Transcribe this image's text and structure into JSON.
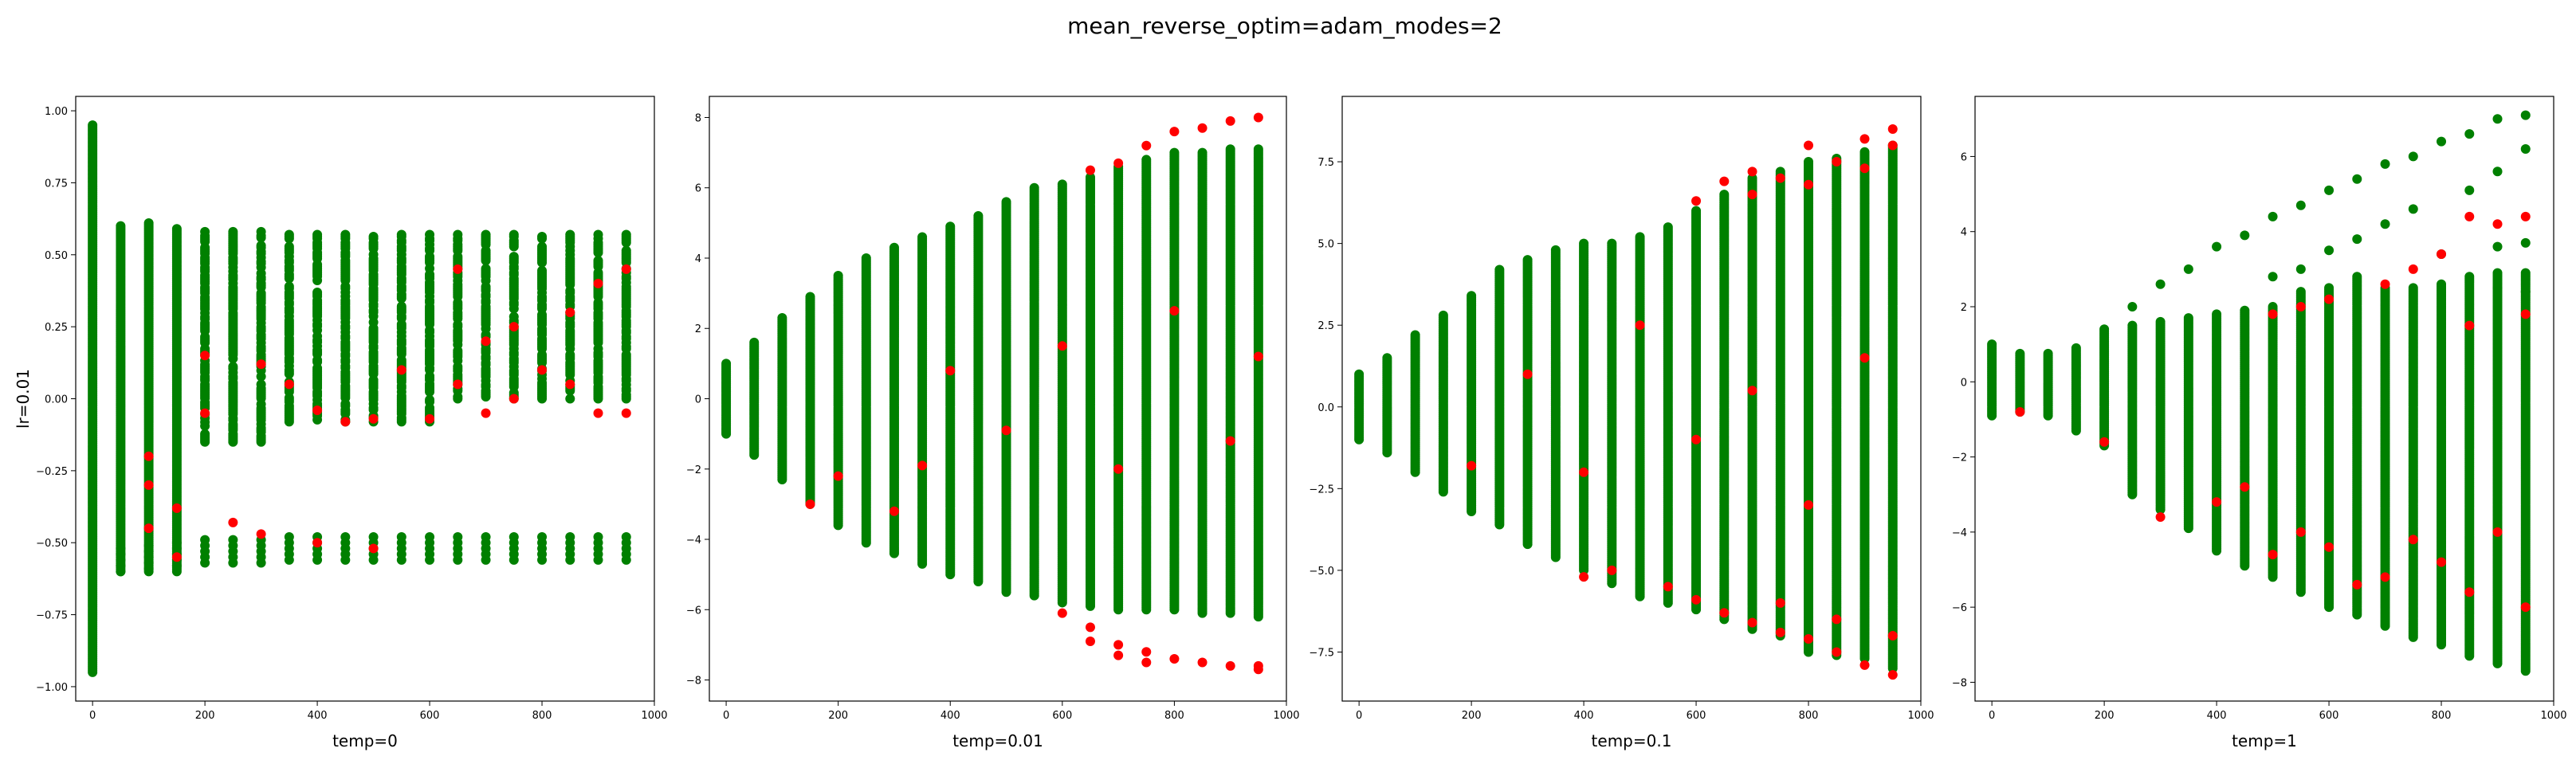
{
  "figure": {
    "title": "mean_reverse_optim=adam_modes=2",
    "colors": {
      "green": "#008000",
      "red": "#ff0000"
    }
  },
  "chart_data": [
    {
      "type": "scatter",
      "xlabel": "temp=0",
      "ylabel": "lr=0.01",
      "xlim": [
        -30,
        1000
      ],
      "ylim": [
        -1.05,
        1.05
      ],
      "xticks": [
        0,
        200,
        400,
        600,
        800,
        1000
      ],
      "yticks": [
        -1.0,
        -0.75,
        -0.5,
        -0.25,
        0.0,
        0.25,
        0.5,
        0.75,
        1.0
      ],
      "ytick_labels": [
        "−1.00",
        "−0.75",
        "−0.50",
        "−0.25",
        "0.00",
        "0.25",
        "0.50",
        "0.75",
        "1.00"
      ],
      "x_steps": [
        0,
        50,
        100,
        150,
        200,
        250,
        300,
        350,
        400,
        450,
        500,
        550,
        600,
        650,
        700,
        750,
        800,
        850,
        900,
        950
      ],
      "upper_max": [
        0.95,
        0.6,
        0.61,
        0.59,
        0.58,
        0.58,
        0.58,
        0.57,
        0.57,
        0.57,
        0.57,
        0.57,
        0.57,
        0.57,
        0.57,
        0.57,
        0.57,
        0.57,
        0.57,
        0.57
      ],
      "lower_min": [
        -0.95,
        -0.6,
        -0.59,
        -0.58,
        -0.57,
        -0.57,
        -0.57,
        -0.56,
        -0.56,
        -0.56,
        -0.56,
        -0.56,
        -0.56,
        -0.56,
        -0.56,
        -0.56,
        -0.56,
        -0.56,
        -0.56,
        -0.56
      ],
      "red_points": [
        [
          100,
          -0.2
        ],
        [
          100,
          -0.3
        ],
        [
          100,
          -0.45
        ],
        [
          150,
          -0.38
        ],
        [
          150,
          -0.55
        ],
        [
          200,
          0.15
        ],
        [
          200,
          -0.05
        ],
        [
          250,
          -0.43
        ],
        [
          300,
          -0.47
        ],
        [
          300,
          0.12
        ],
        [
          350,
          0.05
        ],
        [
          400,
          -0.5
        ],
        [
          400,
          -0.04
        ],
        [
          450,
          -0.08
        ],
        [
          500,
          -0.07
        ],
        [
          500,
          -0.52
        ],
        [
          550,
          0.1
        ],
        [
          600,
          -0.07
        ],
        [
          650,
          0.05
        ],
        [
          700,
          -0.05
        ],
        [
          750,
          0.0
        ],
        [
          800,
          0.1
        ],
        [
          850,
          0.05
        ],
        [
          900,
          -0.05
        ],
        [
          950,
          -0.05
        ],
        [
          950,
          0.45
        ],
        [
          900,
          0.4
        ],
        [
          850,
          0.3
        ],
        [
          750,
          0.25
        ],
        [
          700,
          0.2
        ],
        [
          650,
          0.45
        ]
      ]
    },
    {
      "type": "scatter",
      "xlabel": "temp=0.01",
      "ylabel": "",
      "xlim": [
        -30,
        1000
      ],
      "ylim": [
        -8.6,
        8.6
      ],
      "xticks": [
        0,
        200,
        400,
        600,
        800,
        1000
      ],
      "yticks": [
        -8,
        -6,
        -4,
        -2,
        0,
        2,
        4,
        6,
        8
      ],
      "ytick_labels": [
        "−8",
        "−6",
        "−4",
        "−2",
        "0",
        "2",
        "4",
        "6",
        "8"
      ],
      "x_steps": [
        0,
        50,
        100,
        150,
        200,
        250,
        300,
        350,
        400,
        450,
        500,
        550,
        600,
        650,
        700,
        750,
        800,
        850,
        900,
        950
      ],
      "upper_max": [
        1.0,
        1.6,
        2.3,
        2.9,
        3.5,
        4.0,
        4.3,
        4.6,
        4.9,
        5.2,
        5.6,
        6.0,
        6.1,
        6.3,
        6.6,
        6.8,
        7.0,
        7.0,
        7.1,
        7.1
      ],
      "lower_min": [
        -1.0,
        -1.6,
        -2.3,
        -3.0,
        -3.6,
        -4.1,
        -4.4,
        -4.7,
        -5.0,
        -5.2,
        -5.5,
        -5.6,
        -5.8,
        -5.9,
        -6.0,
        -6.0,
        -6.0,
        -6.1,
        -6.1,
        -6.2
      ],
      "red_points": [
        [
          650,
          6.5
        ],
        [
          700,
          6.7
        ],
        [
          750,
          7.2
        ],
        [
          800,
          7.6
        ],
        [
          850,
          7.7
        ],
        [
          900,
          7.9
        ],
        [
          950,
          8.0
        ],
        [
          600,
          -6.1
        ],
        [
          650,
          -6.5
        ],
        [
          650,
          -6.9
        ],
        [
          700,
          -7.0
        ],
        [
          700,
          -7.3
        ],
        [
          750,
          -7.2
        ],
        [
          750,
          -7.5
        ],
        [
          800,
          -7.4
        ],
        [
          850,
          -7.5
        ],
        [
          900,
          -7.6
        ],
        [
          950,
          -7.6
        ],
        [
          950,
          -7.7
        ],
        [
          150,
          -3.0
        ],
        [
          200,
          -2.2
        ],
        [
          300,
          -3.2
        ],
        [
          350,
          -1.9
        ],
        [
          400,
          0.8
        ],
        [
          500,
          -0.9
        ],
        [
          600,
          1.5
        ],
        [
          700,
          -2.0
        ],
        [
          800,
          2.5
        ],
        [
          900,
          -1.2
        ],
        [
          950,
          1.2
        ]
      ]
    },
    {
      "type": "scatter",
      "xlabel": "temp=0.1",
      "ylabel": "",
      "xlim": [
        -30,
        1000
      ],
      "ylim": [
        -9.0,
        9.5
      ],
      "xticks": [
        0,
        200,
        400,
        600,
        800,
        1000
      ],
      "yticks": [
        -7.5,
        -5.0,
        -2.5,
        0.0,
        2.5,
        5.0,
        7.5
      ],
      "ytick_labels": [
        "−7.5",
        "−5.0",
        "−2.5",
        "0.0",
        "2.5",
        "5.0",
        "7.5"
      ],
      "x_steps": [
        0,
        50,
        100,
        150,
        200,
        250,
        300,
        350,
        400,
        450,
        500,
        550,
        600,
        650,
        700,
        750,
        800,
        850,
        900,
        950
      ],
      "upper_max": [
        1.0,
        1.5,
        2.2,
        2.8,
        3.4,
        4.2,
        4.5,
        4.8,
        5.0,
        5.0,
        5.2,
        5.5,
        6.0,
        6.5,
        7.0,
        7.2,
        7.5,
        7.6,
        7.8,
        8.0
      ],
      "lower_min": [
        -1.0,
        -1.4,
        -2.0,
        -2.6,
        -3.2,
        -3.6,
        -4.2,
        -4.6,
        -5.0,
        -5.4,
        -5.8,
        -6.0,
        -6.2,
        -6.5,
        -6.8,
        -7.0,
        -7.5,
        -7.6,
        -7.7,
        -8.0
      ],
      "red_points": [
        [
          600,
          6.3
        ],
        [
          650,
          6.9
        ],
        [
          700,
          7.2
        ],
        [
          750,
          7.0
        ],
        [
          800,
          8.0
        ],
        [
          850,
          7.5
        ],
        [
          900,
          8.2
        ],
        [
          950,
          8.5
        ],
        [
          950,
          8.0
        ],
        [
          900,
          7.3
        ],
        [
          800,
          6.8
        ],
        [
          700,
          6.5
        ],
        [
          600,
          -5.9
        ],
        [
          650,
          -6.3
        ],
        [
          700,
          -6.6
        ],
        [
          750,
          -6.9
        ],
        [
          800,
          -7.1
        ],
        [
          850,
          -7.5
        ],
        [
          900,
          -7.9
        ],
        [
          950,
          -8.2
        ],
        [
          950,
          -7.0
        ],
        [
          850,
          -6.5
        ],
        [
          750,
          -6.0
        ],
        [
          550,
          -5.5
        ],
        [
          450,
          -5.0
        ],
        [
          400,
          -5.2
        ],
        [
          200,
          -1.8
        ],
        [
          300,
          1.0
        ],
        [
          400,
          -2.0
        ],
        [
          500,
          2.5
        ],
        [
          600,
          -1.0
        ],
        [
          700,
          0.5
        ],
        [
          800,
          -3.0
        ],
        [
          900,
          1.5
        ]
      ]
    },
    {
      "type": "scatter",
      "xlabel": "temp=1",
      "ylabel": "",
      "xlim": [
        -30,
        1000
      ],
      "ylim": [
        -8.5,
        7.6
      ],
      "xticks": [
        0,
        200,
        400,
        600,
        800,
        1000
      ],
      "yticks": [
        -8,
        -6,
        -4,
        -2,
        0,
        2,
        4,
        6
      ],
      "ytick_labels": [
        "−8",
        "−6",
        "−4",
        "−2",
        "0",
        "2",
        "4",
        "6"
      ],
      "x_steps": [
        0,
        50,
        100,
        150,
        200,
        250,
        300,
        350,
        400,
        450,
        500,
        550,
        600,
        650,
        700,
        750,
        800,
        850,
        900,
        950
      ],
      "upper_max": [
        1.0,
        0.75,
        0.75,
        0.9,
        1.4,
        1.5,
        1.6,
        1.7,
        1.8,
        1.9,
        2.0,
        2.4,
        2.5,
        2.8,
        2.5,
        2.5,
        2.6,
        2.8,
        2.9,
        2.9
      ],
      "lower_min": [
        -0.9,
        -0.8,
        -0.9,
        -1.3,
        -1.7,
        -3.0,
        -3.4,
        -3.9,
        -4.5,
        -4.9,
        -5.2,
        -5.6,
        -6.0,
        -6.2,
        -6.5,
        -6.8,
        -7.0,
        -7.3,
        -7.5,
        -7.7
      ],
      "green_outliers": [
        [
          250,
          2.0
        ],
        [
          300,
          2.6
        ],
        [
          350,
          3.0
        ],
        [
          400,
          3.6
        ],
        [
          450,
          3.9
        ],
        [
          500,
          4.4
        ],
        [
          550,
          4.7
        ],
        [
          600,
          5.1
        ],
        [
          650,
          5.4
        ],
        [
          700,
          5.8
        ],
        [
          750,
          6.0
        ],
        [
          800,
          6.4
        ],
        [
          850,
          6.6
        ],
        [
          900,
          7.0
        ],
        [
          950,
          7.1
        ],
        [
          850,
          5.1
        ],
        [
          900,
          5.6
        ],
        [
          950,
          6.2
        ],
        [
          750,
          4.6
        ],
        [
          700,
          4.2
        ],
        [
          650,
          3.8
        ],
        [
          600,
          3.5
        ],
        [
          550,
          3.0
        ],
        [
          500,
          2.8
        ],
        [
          800,
          3.4
        ],
        [
          900,
          3.6
        ],
        [
          950,
          3.7
        ],
        [
          900,
          2.5
        ],
        [
          950,
          2.4
        ]
      ],
      "red_points": [
        [
          950,
          4.4
        ],
        [
          900,
          4.2
        ],
        [
          850,
          4.4
        ],
        [
          800,
          3.4
        ],
        [
          750,
          3.0
        ],
        [
          700,
          2.6
        ],
        [
          600,
          2.2
        ],
        [
          550,
          2.0
        ],
        [
          500,
          1.8
        ],
        [
          50,
          -0.8
        ],
        [
          200,
          -1.6
        ],
        [
          300,
          -3.6
        ],
        [
          400,
          -3.2
        ],
        [
          450,
          -2.8
        ],
        [
          500,
          -4.6
        ],
        [
          550,
          -4.0
        ],
        [
          600,
          -4.4
        ],
        [
          650,
          -5.4
        ],
        [
          700,
          -5.2
        ],
        [
          750,
          -4.2
        ],
        [
          800,
          -4.8
        ],
        [
          850,
          -5.6
        ],
        [
          900,
          -4.0
        ],
        [
          950,
          -6.0
        ],
        [
          850,
          1.5
        ],
        [
          950,
          1.8
        ]
      ]
    }
  ]
}
